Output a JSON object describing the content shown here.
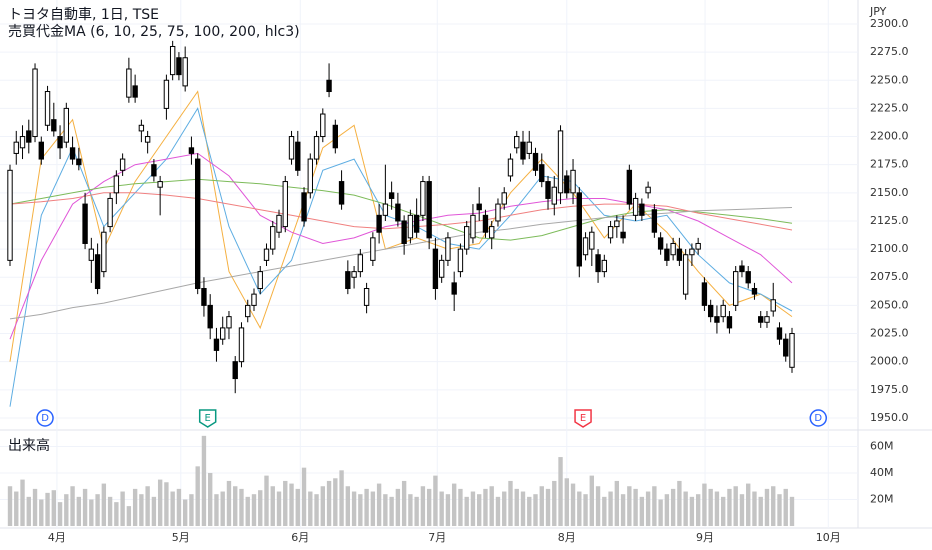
{
  "chart_data": {
    "type": "candlestick",
    "title": "トヨタ自動車, 1日, TSE",
    "subtitle": "売買代金MA (6, 10, 25, 75, 100, 200, hlc3)",
    "currency": "JPY",
    "grid": true,
    "up_color": "#ffffff",
    "down_color": "#000000",
    "open": [
      2090,
      2185,
      2190,
      2205,
      2200,
      2195,
      2210,
      2215,
      2200,
      2195,
      2190,
      2180,
      2140,
      2090,
      2095,
      2080,
      2120,
      2150,
      2170,
      2235,
      2245,
      2205,
      2195,
      2175,
      2155,
      2225,
      2255,
      2270,
      2245,
      2190,
      2180,
      2065,
      2050,
      2020,
      2020,
      2030,
      2000,
      2000,
      2040,
      2050,
      2065,
      2090,
      2100,
      2115,
      2120,
      2180,
      2195,
      2150,
      2150,
      2180,
      2200,
      2250,
      2210,
      2160,
      2080,
      2075,
      2080,
      2050,
      2090,
      2130,
      2130,
      2150,
      2140,
      2125,
      2110,
      2130,
      2130,
      2160,
      2100,
      2075,
      2090,
      2070,
      2080,
      2100,
      2110,
      2140,
      2130,
      2110,
      2125,
      2140,
      2165,
      2190,
      2195,
      2185,
      2185,
      2175,
      2160,
      2140,
      2150,
      2165,
      2150,
      2150,
      2095,
      2100,
      2095,
      2080,
      2110,
      2120,
      2115,
      2170,
      2130,
      2140,
      2150,
      2135,
      2110,
      2100,
      2095,
      2100,
      2060,
      2095,
      2100,
      2070,
      2050,
      2040,
      2040,
      2040,
      2050,
      2085,
      2080,
      2065,
      2040,
      2035,
      2045,
      2030,
      2020,
      1995
    ],
    "high": [
      2175,
      2205,
      2210,
      2215,
      2265,
      2200,
      2245,
      2230,
      2210,
      2230,
      2200,
      2190,
      2150,
      2110,
      2105,
      2120,
      2150,
      2170,
      2185,
      2270,
      2255,
      2215,
      2205,
      2180,
      2165,
      2255,
      2285,
      2275,
      2280,
      2200,
      2185,
      2075,
      2060,
      2030,
      2040,
      2045,
      2005,
      2035,
      2055,
      2065,
      2085,
      2105,
      2125,
      2135,
      2165,
      2205,
      2205,
      2155,
      2185,
      2205,
      2225,
      2265,
      2215,
      2170,
      2090,
      2085,
      2100,
      2070,
      2115,
      2140,
      2175,
      2160,
      2150,
      2130,
      2135,
      2145,
      2165,
      2165,
      2110,
      2095,
      2115,
      2080,
      2105,
      2125,
      2140,
      2155,
      2135,
      2125,
      2145,
      2155,
      2185,
      2205,
      2205,
      2205,
      2190,
      2185,
      2165,
      2165,
      2210,
      2170,
      2180,
      2155,
      2115,
      2120,
      2100,
      2095,
      2125,
      2130,
      2130,
      2175,
      2150,
      2145,
      2160,
      2140,
      2115,
      2105,
      2110,
      2110,
      2100,
      2105,
      2110,
      2075,
      2055,
      2050,
      2055,
      2045,
      2085,
      2090,
      2085,
      2070,
      2045,
      2045,
      2070,
      2035,
      2025,
      2030
    ],
    "low": [
      2085,
      2175,
      2180,
      2185,
      2195,
      2175,
      2205,
      2200,
      2180,
      2190,
      2175,
      2170,
      2100,
      2070,
      2060,
      2075,
      2115,
      2140,
      2165,
      2230,
      2230,
      2195,
      2185,
      2160,
      2130,
      2215,
      2250,
      2250,
      2240,
      2175,
      2060,
      2040,
      2020,
      2000,
      2015,
      2020,
      1972,
      1995,
      2035,
      2045,
      2060,
      2085,
      2095,
      2110,
      2115,
      2175,
      2165,
      2120,
      2145,
      2175,
      2195,
      2235,
      2185,
      2135,
      2060,
      2065,
      2075,
      2043,
      2085,
      2105,
      2125,
      2135,
      2120,
      2095,
      2105,
      2110,
      2125,
      2100,
      2055,
      2070,
      2085,
      2045,
      2075,
      2095,
      2105,
      2125,
      2110,
      2100,
      2120,
      2135,
      2160,
      2185,
      2175,
      2180,
      2165,
      2155,
      2135,
      2130,
      2140,
      2145,
      2140,
      2075,
      2090,
      2085,
      2070,
      2075,
      2105,
      2110,
      2105,
      2135,
      2125,
      2125,
      2145,
      2110,
      2095,
      2085,
      2090,
      2085,
      2055,
      2085,
      2095,
      2045,
      2035,
      2025,
      2035,
      2025,
      2045,
      2075,
      2065,
      2055,
      2030,
      2030,
      2040,
      2015,
      2000,
      1990
    ],
    "close": [
      2170,
      2195,
      2200,
      2195,
      2260,
      2180,
      2240,
      2205,
      2190,
      2225,
      2180,
      2175,
      2105,
      2100,
      2065,
      2115,
      2145,
      2165,
      2180,
      2260,
      2235,
      2210,
      2200,
      2165,
      2160,
      2250,
      2280,
      2255,
      2270,
      2185,
      2065,
      2050,
      2030,
      2010,
      2030,
      2040,
      1985,
      2030,
      2050,
      2060,
      2080,
      2100,
      2120,
      2130,
      2160,
      2200,
      2170,
      2125,
      2180,
      2200,
      2220,
      2240,
      2190,
      2140,
      2065,
      2080,
      2095,
      2065,
      2110,
      2115,
      2140,
      2145,
      2125,
      2105,
      2130,
      2115,
      2160,
      2110,
      2065,
      2090,
      2110,
      2060,
      2100,
      2120,
      2130,
      2135,
      2115,
      2120,
      2140,
      2150,
      2180,
      2200,
      2180,
      2195,
      2170,
      2160,
      2145,
      2155,
      2205,
      2150,
      2170,
      2085,
      2110,
      2115,
      2080,
      2090,
      2120,
      2125,
      2110,
      2140,
      2145,
      2130,
      2155,
      2115,
      2100,
      2090,
      2105,
      2090,
      2095,
      2100,
      2105,
      2050,
      2040,
      2035,
      2050,
      2030,
      2080,
      2080,
      2070,
      2060,
      2035,
      2040,
      2055,
      2020,
      2005,
      2025
    ],
    "xlim": [
      -1.6,
      135.55
    ],
    "xticks": [
      {
        "value": 7.5,
        "label": "4月"
      },
      {
        "value": 27.3,
        "label": "5月"
      },
      {
        "value": 46.4,
        "label": "6月"
      },
      {
        "value": 68.3,
        "label": "7月"
      },
      {
        "value": 89.0,
        "label": "8月"
      },
      {
        "value": 111.1,
        "label": "9月"
      },
      {
        "value": 130.8,
        "label": "10月"
      }
    ],
    "ylim": [
      1939.3,
      2321.3
    ],
    "yticks": [
      {
        "value": 1950,
        "label": "1950.0"
      },
      {
        "value": 1975,
        "label": "1975.0"
      },
      {
        "value": 2000,
        "label": "2000.0"
      },
      {
        "value": 2025,
        "label": "2025.0"
      },
      {
        "value": 2050,
        "label": "2050.0"
      },
      {
        "value": 2075,
        "label": "2075.0"
      },
      {
        "value": 2100,
        "label": "2100.0"
      },
      {
        "value": 2125,
        "label": "2125.0"
      },
      {
        "value": 2150,
        "label": "2150.0"
      },
      {
        "value": 2175,
        "label": "2175.0"
      },
      {
        "value": 2200,
        "label": "2200.0"
      },
      {
        "value": 2225,
        "label": "2225.0"
      },
      {
        "value": 2250,
        "label": "2250.0"
      },
      {
        "value": 2275,
        "label": "2275.0"
      },
      {
        "value": 2300,
        "label": "2300.0"
      }
    ],
    "ma_x": [
      0,
      5,
      10,
      15,
      20,
      25,
      30,
      35,
      40,
      45,
      50,
      55,
      60,
      65,
      70,
      75,
      80,
      85,
      90,
      95,
      100,
      105,
      110,
      115,
      120,
      125
    ],
    "moving_averages": [
      {
        "color": "#f5b041",
        "values": [
          2000,
          2180,
          2215,
          2100,
          2160,
          2200,
          2240,
          2080,
          2030,
          2110,
          2190,
          2210,
          2100,
          2110,
          2100,
          2105,
          2150,
          2180,
          2150,
          2110,
          2140,
          2115,
          2080,
          2050,
          2060,
          2040
        ]
      },
      {
        "color": "#5dade2",
        "values": [
          1960,
          2130,
          2190,
          2120,
          2150,
          2180,
          2225,
          2120,
          2060,
          2090,
          2170,
          2180,
          2130,
          2120,
          2105,
          2100,
          2130,
          2165,
          2160,
          2130,
          2125,
          2130,
          2095,
          2070,
          2060,
          2045
        ]
      },
      {
        "color": "#e056d8",
        "values": [
          2020,
          2090,
          2140,
          2160,
          2175,
          2180,
          2185,
          2165,
          2130,
          2115,
          2105,
          2110,
          2120,
          2125,
          2130,
          2132,
          2138,
          2142,
          2145,
          2145,
          2140,
          2135,
          2125,
          2110,
          2095,
          2070
        ]
      },
      {
        "color": "#7dbb5a",
        "values": [
          2140,
          2145,
          2150,
          2155,
          2158,
          2160,
          2162,
          2160,
          2158,
          2155,
          2152,
          2148,
          2140,
          2130,
          2120,
          2110,
          2108,
          2112,
          2120,
          2128,
          2133,
          2135,
          2133,
          2130,
          2127,
          2123
        ]
      },
      {
        "color": "#f08080",
        "values": [
          2140,
          2142,
          2145,
          2150,
          2150,
          2148,
          2145,
          2140,
          2135,
          2130,
          2125,
          2120,
          2118,
          2120,
          2122,
          2125,
          2130,
          2135,
          2138,
          2140,
          2140,
          2138,
          2132,
          2127,
          2122,
          2117
        ]
      },
      {
        "color": "#a8a8a8",
        "values": [
          2038,
          2042,
          2048,
          2052,
          2058,
          2064,
          2070,
          2075,
          2080,
          2085,
          2090,
          2095,
          2100,
          2105,
          2110,
          2115,
          2118,
          2122,
          2125,
          2128,
          2130,
          2132,
          2134,
          2135,
          2136,
          2137
        ]
      }
    ],
    "events": [
      {
        "label": "D",
        "x": 5.6,
        "color": "#2962ff"
      },
      {
        "label": "E",
        "x": 31.6,
        "color": "#089981"
      },
      {
        "label": "E",
        "x": 91.6,
        "color": "#f23645"
      },
      {
        "label": "D",
        "x": 129.2,
        "color": "#2962ff"
      }
    ],
    "volume": {
      "title": "出来高",
      "color": "#c4c4c4",
      "values": [
        30,
        26,
        35,
        22,
        28,
        20,
        25,
        27,
        18,
        24,
        30,
        22,
        28,
        20,
        24,
        32,
        22,
        18,
        26,
        15,
        28,
        24,
        30,
        22,
        35,
        33,
        26,
        28,
        20,
        24,
        45,
        68,
        40,
        24,
        26,
        34,
        30,
        28,
        22,
        24,
        27,
        38,
        30,
        26,
        34,
        32,
        28,
        44,
        26,
        24,
        30,
        34,
        36,
        42,
        30,
        26,
        24,
        28,
        26,
        32,
        24,
        22,
        28,
        34,
        24,
        22,
        30,
        28,
        38,
        26,
        24,
        32,
        28,
        22,
        26,
        24,
        28,
        30,
        22,
        26,
        34,
        28,
        26,
        22,
        24,
        30,
        28,
        34,
        52,
        36,
        32,
        26,
        24,
        38,
        30,
        22,
        26,
        34,
        24,
        30,
        28,
        22,
        26,
        30,
        20,
        24,
        28,
        34,
        26,
        22,
        24,
        32,
        28,
        26,
        22,
        28,
        30,
        24,
        32,
        26,
        22,
        28,
        30,
        24,
        28,
        22
      ],
      "ylim": [
        -1.5,
        70.9
      ],
      "yticks": [
        {
          "value": 20,
          "label": "20M"
        },
        {
          "value": 40,
          "label": "40M"
        },
        {
          "value": 60,
          "label": "60M"
        }
      ]
    }
  }
}
